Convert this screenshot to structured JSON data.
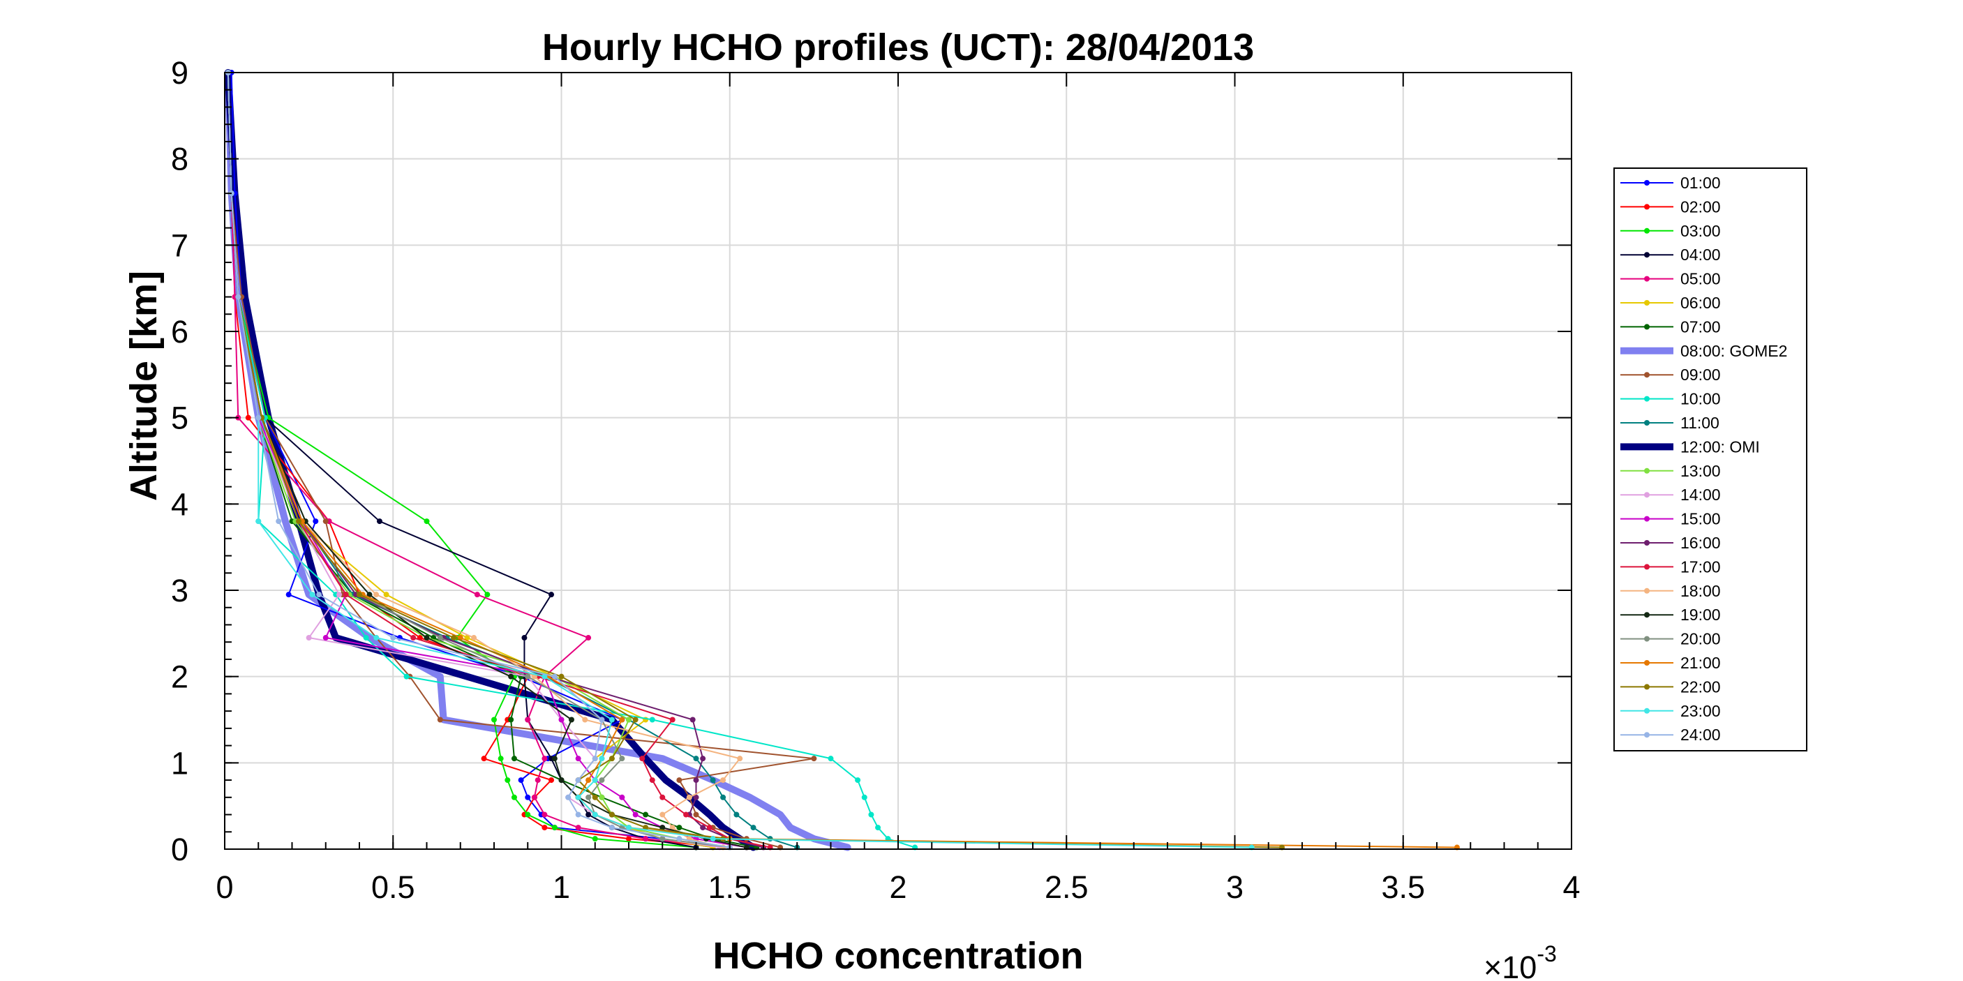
{
  "chart_data": {
    "type": "line",
    "title": "Hourly HCHO profiles (UCT): 28/04/2013",
    "xlabel": "HCHO concentration",
    "ylabel": "Altitude [km]",
    "x_multiplier": {
      "base": "×10",
      "exponent": "-3"
    },
    "xlim": [
      0,
      4
    ],
    "ylim": [
      0,
      9
    ],
    "x_scale": 0.001,
    "xticks": [
      "0",
      "0.5",
      "1",
      "1.5",
      "2",
      "2.5",
      "3",
      "3.5",
      "4"
    ],
    "yticks": [
      "0",
      "1",
      "2",
      "3",
      "4",
      "5",
      "6",
      "7",
      "8",
      "9"
    ],
    "grid": true,
    "legend_position": "right",
    "altitudes": [
      0.02,
      0.12,
      0.25,
      0.4,
      0.6,
      0.8,
      1.05,
      1.5,
      2.0,
      2.45,
      2.95,
      3.8,
      5.0,
      6.4,
      7.6,
      9.0
    ],
    "series": [
      {
        "name": "01:00",
        "color": "#0000ff",
        "width": 2,
        "x": [
          1.45,
          1.3,
          0.98,
          0.94,
          0.9,
          0.88,
          0.96,
          1.18,
          0.88,
          0.52,
          0.19,
          0.27,
          0.12,
          0.05,
          0.03,
          0.02
        ]
      },
      {
        "name": "02:00",
        "color": "#ff0000",
        "width": 2,
        "x": [
          1.5,
          1.2,
          0.95,
          0.89,
          0.92,
          0.97,
          0.77,
          0.84,
          0.9,
          0.58,
          0.4,
          0.31,
          0.07,
          0.03,
          0.02,
          0.01
        ]
      },
      {
        "name": "03:00",
        "color": "#00e600",
        "width": 2,
        "x": [
          1.4,
          1.1,
          0.98,
          0.9,
          0.86,
          0.84,
          0.82,
          0.8,
          0.86,
          0.69,
          0.78,
          0.6,
          0.13,
          0.04,
          0.02,
          0.01
        ]
      },
      {
        "name": "04:00",
        "color": "#000033",
        "width": 2,
        "x": [
          1.4,
          1.25,
          1.15,
          1.08,
          1.05,
          1.0,
          0.97,
          0.9,
          0.89,
          0.89,
          0.97,
          0.46,
          0.12,
          0.04,
          0.02,
          0.01
        ]
      },
      {
        "name": "05:00",
        "color": "#e6007e",
        "width": 2,
        "x": [
          1.5,
          1.25,
          1.05,
          0.95,
          0.92,
          0.93,
          0.95,
          0.9,
          0.95,
          1.08,
          0.75,
          0.31,
          0.04,
          0.03,
          0.02,
          0.01
        ]
      },
      {
        "name": "06:00",
        "color": "#e6c800",
        "width": 2,
        "x": [
          1.45,
          1.3,
          1.2,
          1.15,
          1.1,
          1.05,
          1.1,
          1.25,
          0.98,
          0.72,
          0.48,
          0.22,
          0.1,
          0.04,
          0.02,
          0.01
        ]
      },
      {
        "name": "07:00",
        "color": "#006400",
        "width": 2,
        "x": [
          1.58,
          1.45,
          1.35,
          1.25,
          1.12,
          1.0,
          0.86,
          0.85,
          0.88,
          0.62,
          0.38,
          0.2,
          0.1,
          0.04,
          0.02,
          0.01
        ]
      },
      {
        "name": "08:00: GOME2",
        "color": "#8080f0",
        "width": 10,
        "x": [
          1.85,
          1.75,
          1.68,
          1.65,
          1.56,
          1.45,
          1.3,
          0.65,
          0.64,
          0.43,
          0.25,
          0.18,
          0.1,
          0.04,
          0.02,
          0.01
        ]
      },
      {
        "name": "09:00",
        "color": "#a0522d",
        "width": 2,
        "x": [
          1.65,
          1.55,
          1.45,
          1.4,
          1.38,
          1.35,
          1.75,
          0.64,
          0.55,
          0.45,
          0.35,
          0.3,
          0.12,
          0.05,
          0.02,
          0.01
        ]
      },
      {
        "name": "10:00",
        "color": "#00e6c8",
        "width": 2,
        "x": [
          2.05,
          1.97,
          1.94,
          1.92,
          1.9,
          1.88,
          1.8,
          1.27,
          0.54,
          0.42,
          0.33,
          0.1,
          0.12,
          0.04,
          0.02,
          0.01
        ]
      },
      {
        "name": "11:00",
        "color": "#008080",
        "width": 2,
        "x": [
          1.7,
          1.62,
          1.57,
          1.52,
          1.48,
          1.45,
          1.4,
          1.2,
          0.95,
          0.66,
          0.38,
          0.23,
          0.11,
          0.04,
          0.02,
          0.01
        ]
      },
      {
        "name": "12:00: OMI",
        "color": "#000080",
        "width": 10,
        "x": [
          1.57,
          1.53,
          1.48,
          1.44,
          1.38,
          1.31,
          1.25,
          1.15,
          0.72,
          0.33,
          0.28,
          0.22,
          0.13,
          0.06,
          0.03,
          0.01
        ]
      },
      {
        "name": "13:00",
        "color": "#80e040",
        "width": 2,
        "x": [
          1.5,
          1.35,
          1.2,
          1.15,
          1.12,
          1.1,
          1.15,
          1.2,
          0.98,
          0.6,
          0.37,
          0.21,
          0.1,
          0.04,
          0.02,
          0.01
        ]
      },
      {
        "name": "14:00",
        "color": "#e0a0e0",
        "width": 2,
        "x": [
          1.47,
          1.3,
          1.18,
          1.1,
          1.02,
          1.05,
          1.1,
          1.0,
          0.9,
          0.25,
          0.34,
          0.22,
          0.1,
          0.04,
          0.02,
          0.01
        ]
      },
      {
        "name": "15:00",
        "color": "#c800c8",
        "width": 2,
        "x": [
          1.55,
          1.4,
          1.3,
          1.22,
          1.18,
          1.1,
          1.05,
          1.0,
          0.95,
          0.3,
          0.36,
          0.23,
          0.1,
          0.04,
          0.02,
          0.01
        ]
      },
      {
        "name": "16:00",
        "color": "#6e1e6e",
        "width": 2,
        "x": [
          1.6,
          1.5,
          1.42,
          1.38,
          1.4,
          1.4,
          1.42,
          1.39,
          0.96,
          0.65,
          0.39,
          0.23,
          0.11,
          0.04,
          0.02,
          0.01
        ]
      },
      {
        "name": "17:00",
        "color": "#dc143c",
        "width": 2,
        "x": [
          1.62,
          1.5,
          1.44,
          1.37,
          1.3,
          1.27,
          1.24,
          1.33,
          0.93,
          0.56,
          0.36,
          0.22,
          0.11,
          0.04,
          0.02,
          0.01
        ]
      },
      {
        "name": "18:00",
        "color": "#f4b480",
        "width": 2,
        "x": [
          1.48,
          1.38,
          1.33,
          1.3,
          1.38,
          1.48,
          1.53,
          1.07,
          0.92,
          0.74,
          0.45,
          0.23,
          0.11,
          0.04,
          0.02,
          0.01
        ]
      },
      {
        "name": "19:00",
        "color": "#142814",
        "width": 2,
        "x": [
          1.55,
          1.43,
          1.3,
          1.15,
          1.05,
          1.0,
          0.98,
          1.03,
          0.85,
          0.6,
          0.43,
          0.24,
          0.11,
          0.04,
          0.02,
          0.01
        ]
      },
      {
        "name": "20:00",
        "color": "#809080",
        "width": 2,
        "x": [
          1.5,
          1.3,
          1.18,
          1.1,
          1.08,
          1.12,
          1.18,
          1.12,
          0.9,
          0.64,
          0.4,
          0.22,
          0.11,
          0.04,
          0.02,
          0.01
        ]
      },
      {
        "name": "21:00",
        "color": "#e67800",
        "width": 2,
        "x": [
          3.66,
          1.5,
          1.2,
          1.1,
          1.05,
          1.08,
          1.12,
          1.18,
          0.96,
          0.7,
          0.41,
          0.23,
          0.11,
          0.04,
          0.02,
          0.01
        ]
      },
      {
        "name": "22:00",
        "color": "#8c7800",
        "width": 2,
        "x": [
          3.14,
          1.48,
          1.25,
          1.15,
          1.1,
          1.05,
          1.15,
          1.22,
          1.0,
          0.68,
          0.4,
          0.22,
          0.11,
          0.04,
          0.02,
          0.01
        ]
      },
      {
        "name": "23:00",
        "color": "#40e6e6",
        "width": 2,
        "x": [
          3.05,
          1.45,
          1.2,
          1.1,
          1.05,
          1.1,
          1.12,
          1.15,
          0.95,
          0.45,
          0.26,
          0.1,
          0.1,
          0.04,
          0.02,
          0.01
        ]
      },
      {
        "name": "24:00",
        "color": "#96b4e6",
        "width": 2,
        "x": [
          1.5,
          1.35,
          1.15,
          1.05,
          1.02,
          1.05,
          1.1,
          1.12,
          0.98,
          0.5,
          0.28,
          0.16,
          0.1,
          0.04,
          0.02,
          0.01
        ]
      }
    ]
  }
}
